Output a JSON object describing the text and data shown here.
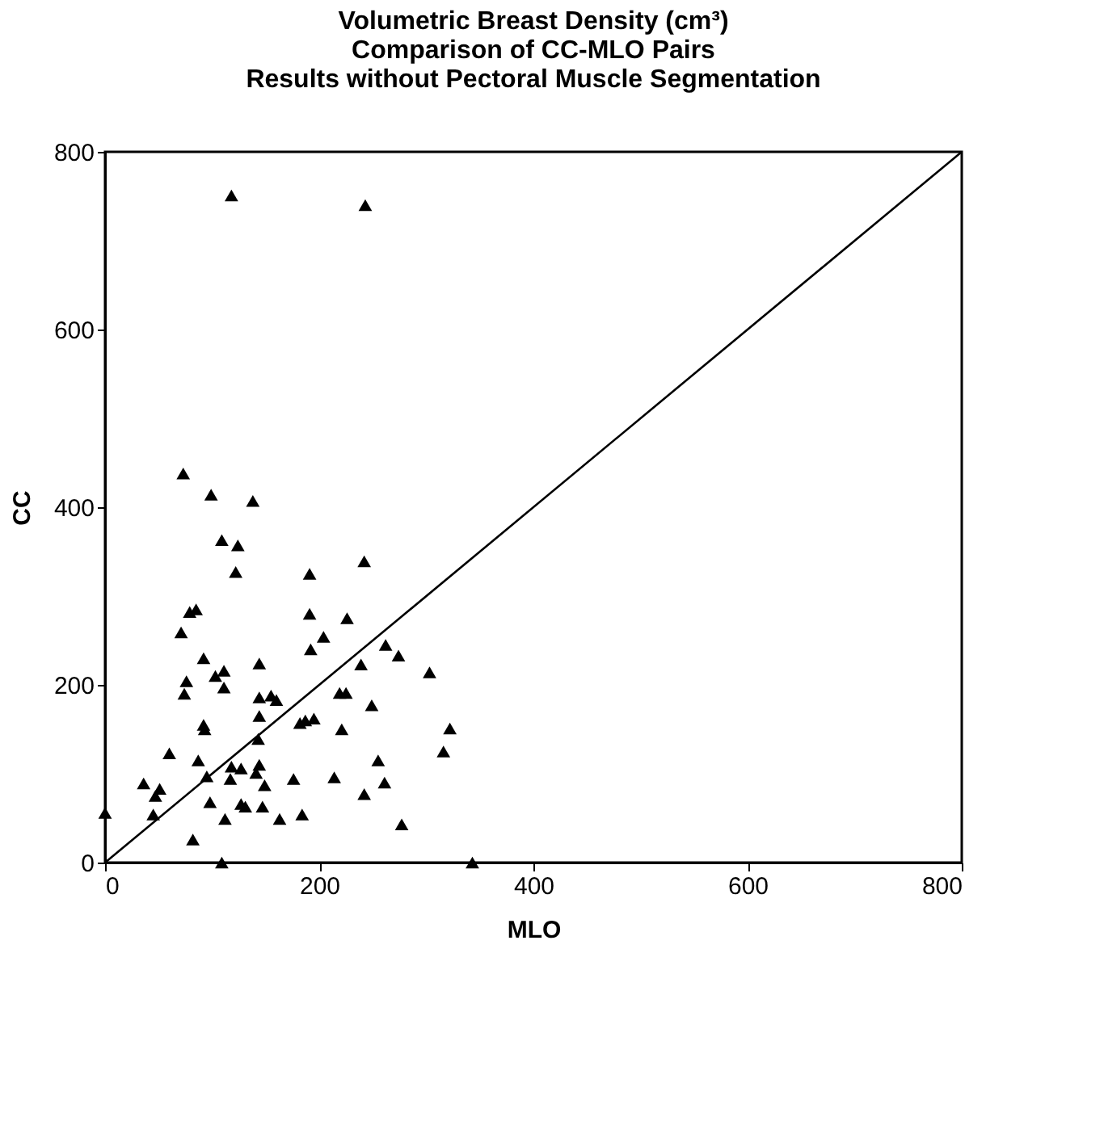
{
  "chart_data": {
    "type": "scatter",
    "title": [
      "Volumetric Breast Density (cm³)",
      "Comparison of CC-MLO Pairs",
      "Results without Pectoral Muscle Segmentation"
    ],
    "xlabel": "MLO",
    "ylabel": "CC",
    "xlim": [
      0,
      800
    ],
    "ylim": [
      0,
      800
    ],
    "xticks": [
      0,
      200,
      400,
      600,
      800
    ],
    "yticks": [
      0,
      200,
      400,
      600,
      800
    ],
    "grid": false,
    "series": [
      {
        "color": "#000000",
        "marker": "triangle",
        "x": [
          73,
          99,
          138,
          109,
          124,
          122,
          79,
          85,
          71,
          92,
          76,
          74,
          103,
          111,
          111,
          144,
          144,
          155,
          160,
          144,
          92,
          93,
          143,
          60,
          87,
          118,
          127,
          117,
          144,
          141,
          95,
          149,
          36,
          51,
          47,
          45,
          98,
          127,
          131,
          147,
          112,
          163,
          82,
          109,
          0,
          242,
          191,
          191,
          226,
          204,
          192,
          262,
          274,
          239,
          303,
          219,
          225,
          249,
          182,
          187,
          195,
          221,
          322,
          316,
          255,
          176,
          214,
          261,
          242,
          184,
          277,
          343,
          118,
          243
        ],
        "values": [
          438,
          414,
          407,
          363,
          357,
          327,
          282,
          285,
          259,
          230,
          204,
          190,
          210,
          216,
          197,
          224,
          186,
          188,
          183,
          165,
          155,
          150,
          139,
          123,
          115,
          108,
          106,
          94,
          110,
          101,
          97,
          87,
          89,
          83,
          75,
          54,
          68,
          66,
          63,
          63,
          49,
          49,
          26,
          0,
          56,
          339,
          325,
          280,
          275,
          254,
          240,
          245,
          233,
          223,
          214,
          191,
          191,
          177,
          157,
          160,
          162,
          150,
          151,
          125,
          115,
          94,
          96,
          90,
          77,
          54,
          43,
          0,
          751,
          740
        ]
      },
      {
        "color": "#000000",
        "type": "line",
        "marker": "none",
        "x": [
          0,
          800
        ],
        "values": [
          0,
          800
        ]
      }
    ]
  }
}
